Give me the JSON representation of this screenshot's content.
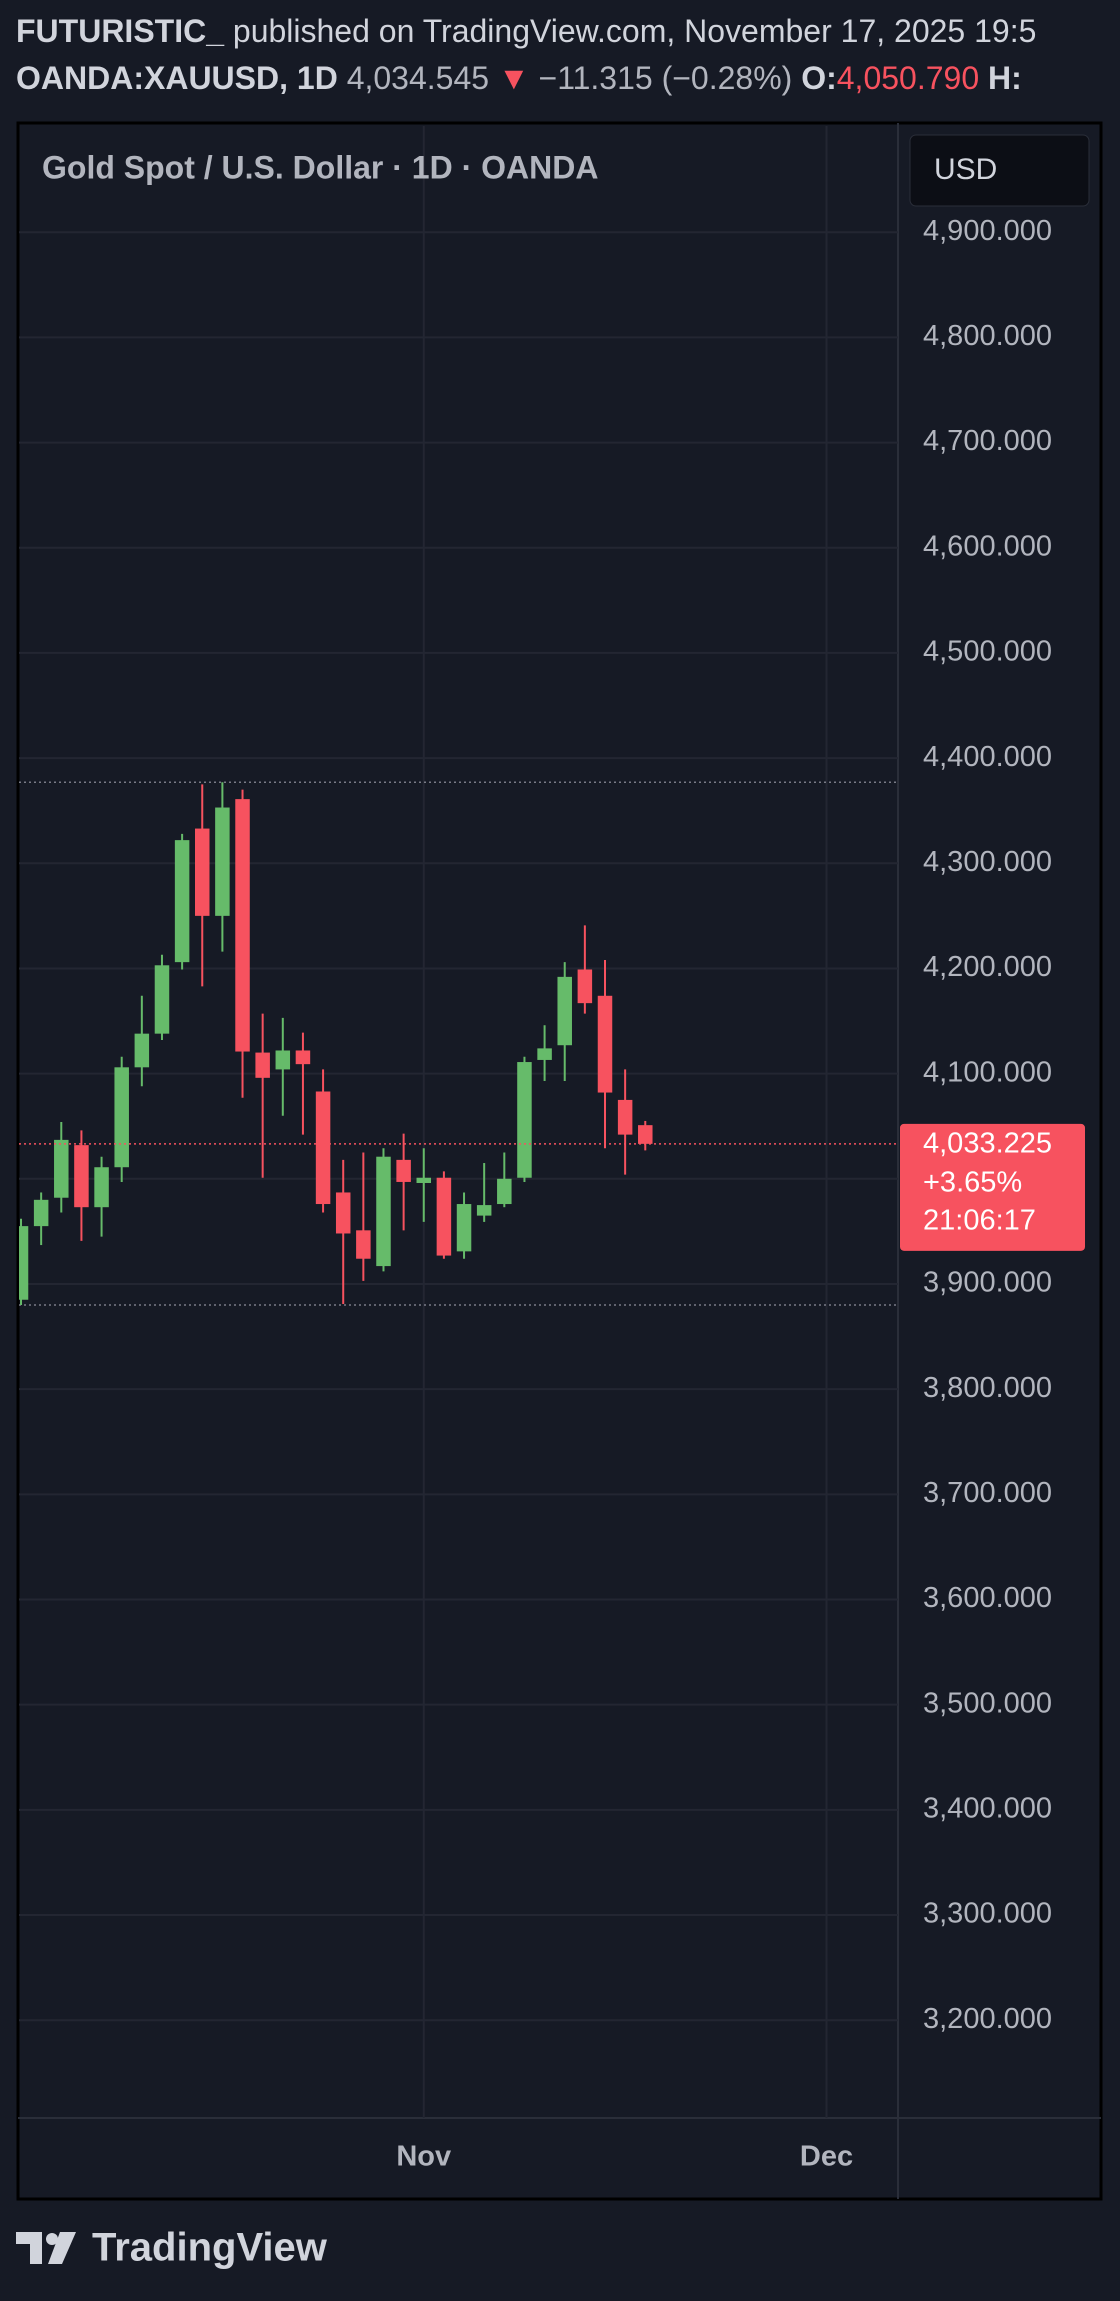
{
  "header": {
    "author": "FUTURISTIC_",
    "published": "published on TradingView.com, November 17, 2025 19:5",
    "symbol": "OANDA:XAUUSD, 1D",
    "last": "4,034.545",
    "arrow": "▼",
    "change": "−11.315 (−0.28%)",
    "open_label": "O:",
    "open_value": "4,050.790",
    "high_label": "H:"
  },
  "currency_button": "USD",
  "brand": "TradingView",
  "chart_data": {
    "type": "candlestick",
    "title": "Gold Spot / U.S. Dollar · 1D · OANDA",
    "open": [
      3885,
      3955,
      3982,
      4032,
      3973,
      4011,
      4106,
      4138,
      4206,
      4333,
      4250,
      4361,
      4120,
      4104,
      4122,
      4083,
      3987,
      3951,
      3917,
      4018,
      3996,
      4001,
      3931,
      3965,
      3976,
      4001,
      4113,
      4127,
      4199,
      4174,
      4075,
      4051
    ],
    "high": [
      3962,
      3987,
      4054,
      4046,
      4021,
      4116,
      4174,
      4213,
      4328,
      4375,
      4377,
      4370,
      4157,
      4153,
      4139,
      4104,
      4018,
      4025,
      4029,
      4043,
      4029,
      4007,
      3987,
      4015,
      4025,
      4116,
      4146,
      4206,
      4241,
      4208,
      4104,
      4055
    ],
    "low": [
      3880,
      3937,
      3968,
      3941,
      3945,
      3997,
      4088,
      4132,
      4199,
      4183,
      4216,
      4077,
      4001,
      4060,
      4042,
      3968,
      3881,
      3903,
      3912,
      3951,
      3959,
      3924,
      3924,
      3959,
      3973,
      3997,
      4093,
      4093,
      4157,
      4029,
      4004,
      4027
    ],
    "close": [
      3955,
      3980,
      4037,
      3973,
      4011,
      4106,
      4138,
      4203,
      4322,
      4250,
      4353,
      4121,
      4096,
      4122,
      4109,
      3976,
      3948,
      3924,
      4021,
      3997,
      4001,
      3927,
      3976,
      3975,
      4000,
      4111,
      4124,
      4192,
      4167,
      4082,
      4042,
      4033.225
    ],
    "up_color": "#66bb6a",
    "down_color": "#f7525f",
    "last_price": {
      "value": 4033.225,
      "label": "4,033.225"
    },
    "last_change": "+3.65%",
    "countdown": "21:06:17",
    "ylim": [
      3107,
      5001
    ],
    "yticks": [
      {
        "value": 3200,
        "label": "3,200.000"
      },
      {
        "value": 3300,
        "label": "3,300.000"
      },
      {
        "value": 3400,
        "label": "3,400.000"
      },
      {
        "value": 3500,
        "label": "3,500.000"
      },
      {
        "value": 3600,
        "label": "3,600.000"
      },
      {
        "value": 3700,
        "label": "3,700.000"
      },
      {
        "value": 3800,
        "label": "3,800.000"
      },
      {
        "value": 3900,
        "label": "3,900.000"
      },
      {
        "value": 4000,
        "label": "4,000.000"
      },
      {
        "value": 4100,
        "label": "4,100.000"
      },
      {
        "value": 4200,
        "label": "4,200.000"
      },
      {
        "value": 4300,
        "label": "4,300.000"
      },
      {
        "value": 4400,
        "label": "4,400.000"
      },
      {
        "value": 4500,
        "label": "4,500.000"
      },
      {
        "value": 4600,
        "label": "4,600.000"
      },
      {
        "value": 4700,
        "label": "4,700.000"
      },
      {
        "value": 4800,
        "label": "4,800.000"
      },
      {
        "value": 4900,
        "label": "4,900.000"
      }
    ],
    "xlim": [
      -0.1,
      43.55
    ],
    "xticks": [
      {
        "value": 20,
        "label": "Nov"
      },
      {
        "value": 40,
        "label": "Dec"
      }
    ],
    "grid": true
  }
}
